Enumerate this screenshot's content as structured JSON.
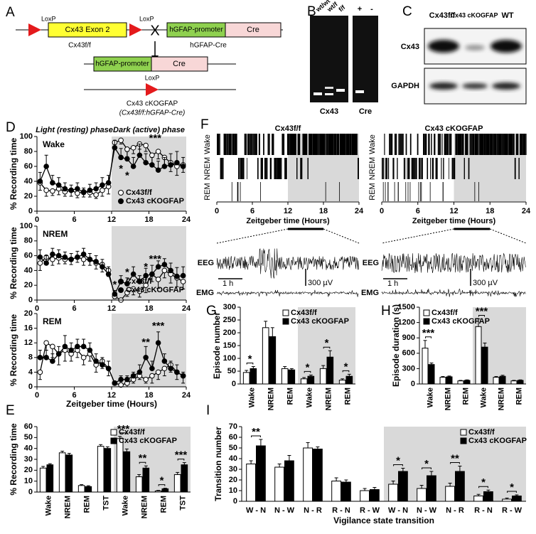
{
  "panel_labels": [
    "A",
    "B",
    "C",
    "D",
    "E",
    "F",
    "G",
    "H",
    "I"
  ],
  "panel_a": {
    "loxp": "LoxP",
    "exon": "Cx43 Exon 2",
    "floxed": "Cx43f/f",
    "cross": "X",
    "promoter": "hGFAP-promoter",
    "cre": "Cre",
    "driver": "hGFAP-Cre",
    "ko": "Cx43 cKOGFAP",
    "genotype": "(Cx43f/f:hGFAP-Cre)"
  },
  "panel_b": {
    "lanes": [
      "wt/wt",
      "wt/f",
      "f/f"
    ],
    "cre_lanes": [
      "+",
      "-"
    ],
    "gels": [
      "Cx43",
      "Cre"
    ]
  },
  "panel_c": {
    "lanes": [
      "Cx43f/f",
      "Cx43 cKOGFAP",
      "WT"
    ],
    "rows": [
      "Cx43",
      "GAPDH"
    ]
  },
  "panel_f": {
    "titles": [
      "Cx43f/f",
      "Cx43 cKOGFAP"
    ],
    "states": [
      "Wake",
      "NREM",
      "REM"
    ],
    "xticks": [
      0,
      6,
      12,
      18,
      24
    ],
    "xlabel": "Zeitgeber time (Hours)",
    "eeg": "EEG",
    "emg": "EMG",
    "time_scale": "1 h",
    "volt_scale": "300 µV"
  },
  "chart_data": [
    {
      "type": "line",
      "title": "Wake",
      "ylabel": "% Recording time",
      "phase_labels": [
        "Light (resting) phase",
        "Dark (active) phase"
      ],
      "x": [
        0.5,
        1.5,
        2.5,
        3.5,
        4.5,
        5.5,
        6.5,
        7.5,
        8.5,
        9.5,
        10.5,
        11.5,
        12.5,
        13.5,
        14.5,
        15.5,
        16.5,
        17.5,
        18.5,
        19.5,
        20.5,
        21.5,
        22.5,
        23.5
      ],
      "series": [
        {
          "name": "Cx43f/f",
          "color": "#ffffff",
          "values": [
            38,
            28,
            27,
            30,
            26,
            28,
            24,
            26,
            25,
            22,
            28,
            33,
            92,
            95,
            83,
            85,
            90,
            88,
            75,
            80,
            72,
            65,
            60,
            62
          ],
          "errors": [
            10,
            8,
            6,
            8,
            6,
            8,
            6,
            7,
            6,
            5,
            8,
            10,
            8,
            5,
            10,
            8,
            7,
            8,
            12,
            10,
            12,
            12,
            12,
            10
          ]
        },
        {
          "name": "Cx43 cKOGFAP",
          "color": "#000000",
          "values": [
            40,
            60,
            38,
            35,
            30,
            28,
            30,
            25,
            28,
            30,
            35,
            38,
            85,
            72,
            70,
            60,
            75,
            65,
            62,
            55,
            60,
            62,
            65,
            60
          ],
          "errors": [
            12,
            15,
            10,
            10,
            8,
            7,
            8,
            6,
            8,
            8,
            10,
            10,
            10,
            12,
            10,
            12,
            15,
            12,
            10,
            12,
            12,
            15,
            15,
            12
          ]
        }
      ],
      "xlim": [
        0,
        24
      ],
      "xticks": [
        0,
        6,
        12,
        18,
        24
      ],
      "ylim": [
        0,
        100
      ],
      "yticks": [
        0,
        20,
        40,
        60,
        80,
        100
      ],
      "shaded_x": [
        12,
        24
      ],
      "legend": "lower right",
      "annotations": [
        {
          "text": "*",
          "x": 13.5,
          "y": 56
        },
        {
          "text": "*",
          "x": 14.5,
          "y": 47
        },
        {
          "text": "***",
          "x": 19,
          "y": 97
        }
      ]
    },
    {
      "type": "line",
      "title": "NREM",
      "ylabel": "% Recording time",
      "x": [
        0.5,
        1.5,
        2.5,
        3.5,
        4.5,
        5.5,
        6.5,
        7.5,
        8.5,
        9.5,
        10.5,
        11.5,
        12.5,
        13.5,
        14.5,
        15.5,
        16.5,
        17.5,
        18.5,
        19.5,
        20.5,
        21.5,
        22.5,
        23.5
      ],
      "series": [
        {
          "name": "Cx43f/f",
          "color": "#ffffff",
          "values": [
            50,
            58,
            55,
            57,
            55,
            55,
            58,
            55,
            55,
            50,
            48,
            40,
            5,
            0,
            10,
            15,
            12,
            20,
            35,
            28,
            40,
            35,
            30,
            25
          ],
          "errors": [
            10,
            8,
            8,
            8,
            6,
            7,
            7,
            8,
            8,
            8,
            10,
            8,
            3,
            1,
            5,
            8,
            8,
            10,
            10,
            12,
            10,
            12,
            12,
            10
          ]
        },
        {
          "name": "Cx43 cKOGFAP",
          "color": "#000000",
          "values": [
            58,
            50,
            62,
            60,
            58,
            55,
            58,
            62,
            55,
            52,
            45,
            35,
            8,
            25,
            22,
            35,
            25,
            33,
            35,
            45,
            48,
            40,
            32,
            33
          ],
          "errors": [
            10,
            10,
            8,
            8,
            7,
            8,
            8,
            8,
            8,
            8,
            10,
            10,
            5,
            8,
            8,
            10,
            8,
            10,
            12,
            8,
            8,
            10,
            12,
            12
          ]
        }
      ],
      "xlim": [
        0,
        24
      ],
      "xticks": [
        0,
        6,
        12,
        18,
        24
      ],
      "ylim": [
        0,
        100
      ],
      "yticks": [
        0,
        20,
        40,
        60,
        80,
        100
      ],
      "shaded_x": [
        12,
        24
      ],
      "legend": "lower right",
      "annotations": [
        {
          "text": "*",
          "x": 12.5,
          "y": 20
        },
        {
          "text": "*",
          "x": 14.5,
          "y": 37
        },
        {
          "text": "*",
          "x": 17.5,
          "y": 44
        },
        {
          "text": "***",
          "x": 19,
          "y": 55
        }
      ]
    },
    {
      "type": "line",
      "title": "REM",
      "ylabel": "% Recording time",
      "xlabel": "Zeitgeber time (Hours)",
      "x": [
        0.5,
        1.5,
        2.5,
        3.5,
        4.5,
        5.5,
        6.5,
        7.5,
        8.5,
        9.5,
        10.5,
        11.5,
        12.5,
        13.5,
        14.5,
        15.5,
        16.5,
        17.5,
        18.5,
        19.5,
        20.5,
        21.5,
        22.5,
        23.5
      ],
      "series": [
        {
          "name": "Cx43f/f",
          "color": "#ffffff",
          "values": [
            4,
            12,
            11,
            9,
            10,
            9,
            10,
            8,
            9,
            6,
            7,
            5,
            1,
            0.5,
            1,
            2,
            3,
            2,
            3,
            4,
            5,
            6,
            4,
            3
          ],
          "errors": [
            2,
            2,
            3,
            3,
            3,
            2,
            2,
            2,
            2,
            2,
            2,
            2,
            0.5,
            0.5,
            1,
            1,
            1,
            1,
            2,
            2,
            2,
            2,
            2,
            2
          ]
        },
        {
          "name": "Cx43 cKOGFAP",
          "color": "#000000",
          "values": [
            8,
            8,
            7,
            9,
            11,
            10,
            11,
            11,
            10,
            7,
            6,
            5,
            1,
            2,
            2,
            3,
            4,
            8,
            5,
            12,
            7,
            5,
            4,
            3
          ],
          "errors": [
            2,
            2,
            2,
            2,
            3,
            2,
            2,
            2,
            2,
            2,
            2,
            2,
            0.5,
            1,
            1,
            1,
            2,
            3,
            2,
            3,
            2,
            2,
            2,
            1
          ]
        }
      ],
      "xlim": [
        0,
        24
      ],
      "xticks": [
        0,
        6,
        12,
        18,
        24
      ],
      "ylim": [
        0,
        20
      ],
      "yticks": [
        0,
        4,
        8,
        12,
        16,
        20
      ],
      "shaded_x": [
        12,
        24
      ],
      "annotations": [
        {
          "text": "**",
          "x": 17.5,
          "y": 12
        },
        {
          "text": "***",
          "x": 19.5,
          "y": 16.5
        }
      ]
    },
    {
      "type": "bar",
      "ylabel": "% Recording time",
      "categories": [
        "Wake",
        "NREM",
        "REM",
        "TST",
        "Wake",
        "NREM",
        "REM",
        "TST"
      ],
      "series": [
        {
          "name": "Cx43f/f",
          "color": "#ffffff",
          "values": [
            22,
            36,
            6,
            42,
            49,
            14,
            1,
            16
          ],
          "errors": [
            1.5,
            1.5,
            0.8,
            1.5,
            2,
            2,
            0.5,
            2
          ]
        },
        {
          "name": "Cx43 cKOGFAP",
          "color": "#000000",
          "values": [
            25,
            34,
            5,
            40,
            37,
            22,
            3,
            25
          ],
          "errors": [
            1,
            1.5,
            0.8,
            1.5,
            2.5,
            2,
            0.5,
            2
          ]
        }
      ],
      "ylim": [
        0,
        60
      ],
      "yticks": [
        0,
        10,
        20,
        30,
        40,
        50,
        60
      ],
      "legend": "upper right",
      "annotations": [
        {
          "text": "***",
          "index": 4
        },
        {
          "text": "**",
          "index": 5
        },
        {
          "text": "*",
          "index": 6
        },
        {
          "text": "***",
          "index": 7
        }
      ]
    },
    {
      "type": "bar",
      "ylabel": "Episode number",
      "categories": [
        "Wake",
        "NREM",
        "REM",
        "Wake",
        "NREM",
        "REM"
      ],
      "series": [
        {
          "name": "Cx43f/f",
          "color": "#ffffff",
          "values": [
            45,
            220,
            60,
            20,
            60,
            15
          ],
          "errors": [
            8,
            25,
            8,
            5,
            12,
            5
          ]
        },
        {
          "name": "Cx43 cKOGFAP",
          "color": "#000000",
          "values": [
            60,
            185,
            55,
            30,
            105,
            30
          ],
          "errors": [
            8,
            35,
            5,
            5,
            25,
            8
          ]
        }
      ],
      "ylim": [
        0,
        300
      ],
      "yticks": [
        0,
        50,
        100,
        150,
        200,
        250,
        300
      ],
      "legend": "upper right",
      "annotations": [
        {
          "text": "*",
          "index": 0
        },
        {
          "text": "*",
          "index": 3
        },
        {
          "text": "*",
          "index": 4
        },
        {
          "text": "*",
          "index": 5
        }
      ]
    },
    {
      "type": "bar",
      "ylabel": "Episode duration (s)",
      "categories": [
        "Wake",
        "NREM",
        "REM",
        "Wake",
        "NREM",
        "REM"
      ],
      "series": [
        {
          "name": "Cx43f/f",
          "color": "#ffffff",
          "values": [
            700,
            130,
            60,
            1120,
            130,
            60
          ],
          "errors": [
            150,
            15,
            10,
            150,
            15,
            10
          ]
        },
        {
          "name": "Cx43 cKOGFAP",
          "color": "#000000",
          "values": [
            380,
            140,
            70,
            720,
            150,
            70
          ],
          "errors": [
            30,
            15,
            10,
            80,
            20,
            10
          ]
        }
      ],
      "ylim": [
        0,
        1500
      ],
      "yticks": [
        0,
        300,
        600,
        900,
        1200,
        1500
      ],
      "legend": "upper right",
      "annotations": [
        {
          "text": "***",
          "index": 0
        },
        {
          "text": "***",
          "index": 3
        }
      ]
    },
    {
      "type": "bar",
      "ylabel": "Transition number",
      "xlabel": "Vigilance state transition",
      "categories": [
        "W - N",
        "N - W",
        "N - R",
        "R - N",
        "R - W",
        "W - N",
        "N - W",
        "N - R",
        "R - N",
        "R - W"
      ],
      "series": [
        {
          "name": "Cx43f/f",
          "color": "#ffffff",
          "values": [
            35,
            32,
            50,
            19,
            10,
            16,
            12,
            14,
            5,
            2
          ],
          "errors": [
            3,
            3,
            5,
            3,
            2,
            3,
            3,
            3,
            1.5,
            1
          ]
        },
        {
          "name": "Cx43 cKOGFAP",
          "color": "#000000",
          "values": [
            52,
            38,
            49,
            18,
            11,
            28,
            24,
            28,
            9,
            5
          ],
          "errors": [
            6,
            5,
            2,
            2,
            2,
            3,
            4,
            5,
            1.5,
            1
          ]
        }
      ],
      "ylim": [
        0,
        70
      ],
      "yticks": [
        0,
        10,
        20,
        30,
        40,
        50,
        60,
        70
      ],
      "legend": "upper right",
      "annotations": [
        {
          "text": "**",
          "index": 0
        },
        {
          "text": "*",
          "index": 5
        },
        {
          "text": "*",
          "index": 6
        },
        {
          "text": "**",
          "index": 7
        },
        {
          "text": "*",
          "index": 8
        },
        {
          "text": "*",
          "index": 9
        }
      ]
    }
  ]
}
